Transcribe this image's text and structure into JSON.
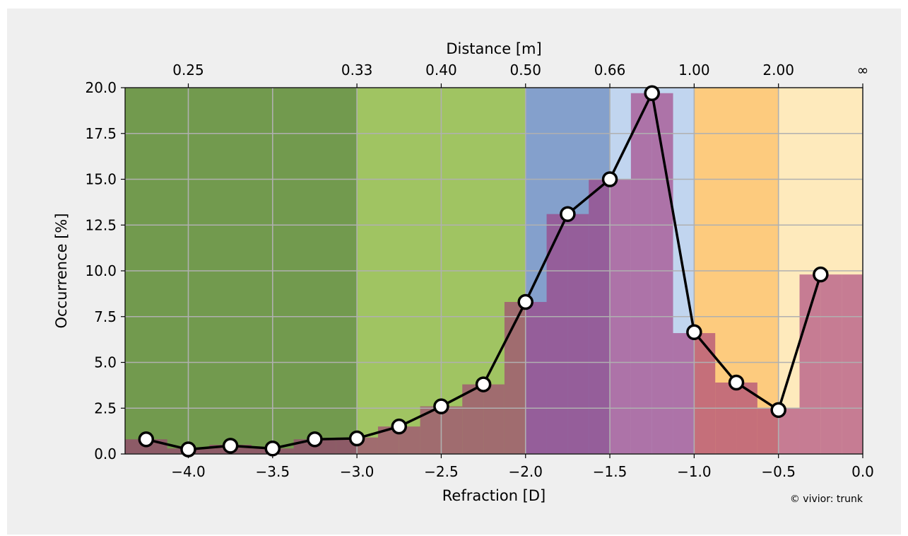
{
  "chart_data": {
    "type": "bar",
    "xlabel": "Refraction [D]",
    "ylabel": "Occurrence [%]",
    "x2label": "Distance [m]",
    "xlim": [
      -4.375,
      0.0
    ],
    "ylim": [
      0,
      20
    ],
    "grid": true,
    "x_ticks": [
      "−4.0",
      "−3.5",
      "−3.0",
      "−2.5",
      "−2.0",
      "−1.5",
      "−1.0",
      "−0.5",
      "0.0"
    ],
    "x_tick_values": [
      -4.0,
      -3.5,
      -3.0,
      -2.5,
      -2.0,
      -1.5,
      -1.0,
      -0.5,
      0.0
    ],
    "y_ticks": [
      "0.0",
      "2.5",
      "5.0",
      "7.5",
      "10.0",
      "12.5",
      "15.0",
      "17.5",
      "20.0"
    ],
    "y_tick_values": [
      0,
      2.5,
      5,
      7.5,
      10,
      12.5,
      15,
      17.5,
      20
    ],
    "x2_ticks": [
      {
        "label": "0.25",
        "value": -4.0
      },
      {
        "label": "0.33",
        "value": -3.0
      },
      {
        "label": "0.40",
        "value": -2.5
      },
      {
        "label": "0.50",
        "value": -2.0
      },
      {
        "label": "0.66",
        "value": -1.5
      },
      {
        "label": "1.00",
        "value": -1.0
      },
      {
        "label": "2.00",
        "value": -0.5
      },
      {
        "label": "∞",
        "value": 0.0
      }
    ],
    "zones": [
      {
        "from": -4.375,
        "to": -3.0,
        "color": "#729a4e"
      },
      {
        "from": -3.0,
        "to": -2.0,
        "color": "#a0c462"
      },
      {
        "from": -2.0,
        "to": -1.5,
        "color": "#84a0cc"
      },
      {
        "from": -1.5,
        "to": -1.0,
        "color": "#c1d5ef"
      },
      {
        "from": -1.0,
        "to": -0.5,
        "color": "#fdcb7e"
      },
      {
        "from": -0.5,
        "to": 0.0,
        "color": "#feeabc"
      }
    ],
    "histogram": {
      "bin_width": 0.125,
      "bin_starts": [
        -4.375,
        -4.25,
        -4.125,
        -4.0,
        -3.875,
        -3.75,
        -3.625,
        -3.5,
        -3.375,
        -3.25,
        -3.125,
        -3.0,
        -2.875,
        -2.75,
        -2.625,
        -2.5,
        -2.375,
        -2.25,
        -2.125,
        -2.0,
        -1.875,
        -1.75,
        -1.625,
        -1.5,
        -1.375,
        -1.25,
        -1.125,
        -1.0,
        -0.875,
        -0.75,
        -0.625,
        -0.5,
        -0.375,
        -0.25,
        -0.125
      ],
      "values": [
        0.8,
        0.8,
        0.3,
        0.3,
        0.5,
        0.5,
        0.3,
        0.3,
        0.8,
        0.8,
        0.9,
        0.9,
        1.5,
        1.5,
        2.6,
        2.6,
        3.8,
        3.8,
        8.3,
        8.3,
        13.1,
        13.1,
        15.0,
        15.0,
        19.7,
        19.7,
        6.6,
        6.6,
        3.9,
        3.9,
        2.5,
        2.5,
        9.8,
        9.8,
        9.8
      ],
      "color": "rgba(160, 50, 120, 0.6)"
    },
    "series": [
      {
        "x": [
          -4.25,
          -4.0,
          -3.75,
          -3.5,
          -3.25,
          -3.0,
          -2.75,
          -2.5,
          -2.25,
          -2.0,
          -1.75,
          -1.5,
          -1.25,
          -1.0,
          -0.75,
          -0.5,
          -0.25
        ],
        "y": [
          0.8,
          0.25,
          0.45,
          0.3,
          0.8,
          0.85,
          1.5,
          2.6,
          3.8,
          8.3,
          13.1,
          15.0,
          19.7,
          6.65,
          3.9,
          2.4,
          9.8
        ],
        "line_color": "#000000",
        "marker_fill": "#ffffff"
      }
    ],
    "annotation": "© vivior: trunk"
  }
}
